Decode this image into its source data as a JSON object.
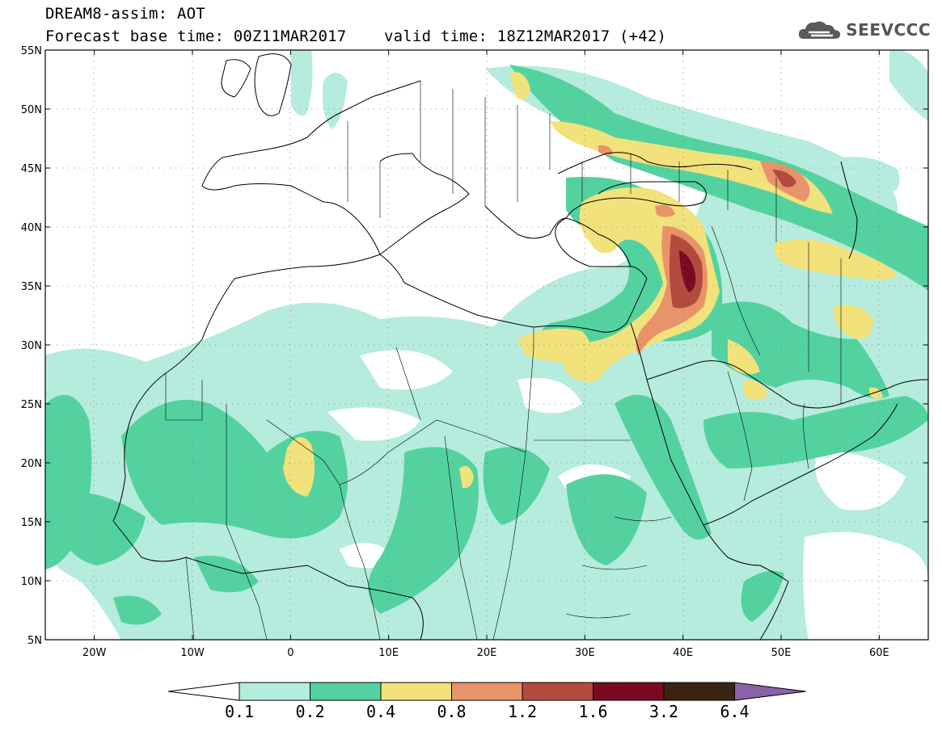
{
  "header": {
    "title_line1": "DREAM8-assim: AOT",
    "forecast_base_label": "Forecast base time: 00Z11MAR2017",
    "valid_time_label": "valid time: 18Z12MAR2017 (+42)"
  },
  "logo": {
    "text": "SEEVCCC",
    "icon": "cloud-logo-icon"
  },
  "map": {
    "lon_range": [
      -25,
      65
    ],
    "lat_range": [
      5,
      55
    ],
    "lat_ticks": [
      "55N",
      "50N",
      "45N",
      "40N",
      "35N",
      "30N",
      "25N",
      "20N",
      "15N",
      "10N",
      "5N"
    ],
    "lon_ticks": [
      "20W",
      "10W",
      "0",
      "10E",
      "20E",
      "30E",
      "40E",
      "50E",
      "60E"
    ],
    "grid": "dotted"
  },
  "colorbar": {
    "labels": [
      "0.1",
      "0.2",
      "0.4",
      "0.8",
      "1.2",
      "1.6",
      "3.2",
      "6.4"
    ],
    "colors": [
      "#ffffff",
      "#b6ecdd",
      "#53d2a0",
      "#f2e27b",
      "#e9936b",
      "#b24b3e",
      "#7a0a22",
      "#3b2314",
      "#8a62a8"
    ]
  }
}
